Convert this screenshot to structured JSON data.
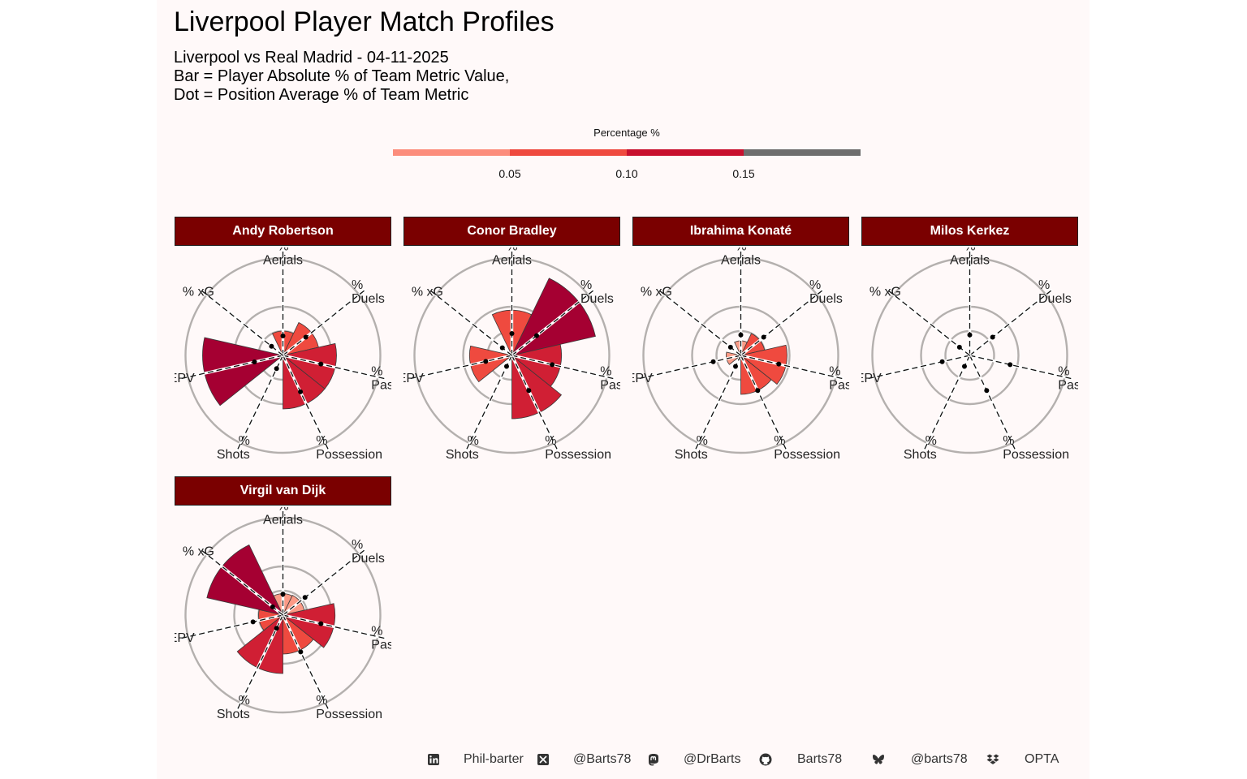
{
  "title": "Liverpool Player Match Profiles",
  "subtitle_lines": [
    "Liverpool vs Real Madrid - 04-11-2025",
    "Bar = Player Absolute % of Team Metric Value,",
    "Dot = Position Average % of Team Metric"
  ],
  "legend": {
    "title": "Percentage %",
    "ticks": [
      "0.05",
      "0.10",
      "0.15"
    ],
    "colors": [
      "#fc8d7c",
      "#ef4a3f",
      "#c8102e",
      "#6e6e6e"
    ]
  },
  "chart_data": {
    "type": "polar-bar",
    "metric_labels": [
      [
        "%",
        "Aerials"
      ],
      [
        "%",
        "Duels"
      ],
      [
        "%",
        "Passes"
      ],
      [
        "%",
        "Possession"
      ],
      [
        "%",
        "Shots"
      ],
      [
        "% EPV"
      ],
      [
        "% xG"
      ]
    ],
    "metrics": [
      "Aerials",
      "Duels",
      "Passes",
      "Possession",
      "Shots",
      "EPV",
      "xG"
    ],
    "rlim": [
      0,
      0.2
    ],
    "gridlines": [
      0.05,
      0.1,
      0.2
    ],
    "fill_scale": {
      "breaks": [
        0.05,
        0.1,
        0.15
      ],
      "colors": [
        "#fb9a86",
        "#ef4a3f",
        "#d01f34",
        "#a50032"
      ]
    },
    "players": [
      {
        "name": "Andy Robertson",
        "values": [
          0.05,
          0.075,
          0.11,
          0.11,
          0.0,
          0.165,
          0.0
        ],
        "avg": [
          0.04,
          0.06,
          0.08,
          0.083,
          0.03,
          0.06,
          0.03
        ]
      },
      {
        "name": "Conor Bradley",
        "values": [
          0.093,
          0.176,
          0.102,
          0.13,
          0.0,
          0.087,
          0.0
        ],
        "avg": [
          0.045,
          0.065,
          0.085,
          0.08,
          0.025,
          0.055,
          0.025
        ]
      },
      {
        "name": "Ibrahima Konaté",
        "values": [
          0.03,
          0.05,
          0.095,
          0.08,
          0.0,
          0.03,
          0.0
        ],
        "avg": [
          0.042,
          0.06,
          0.08,
          0.08,
          0.025,
          0.058,
          0.027
        ]
      },
      {
        "name": "Milos Kerkez",
        "values": [
          0.0,
          0.0,
          0.0,
          0.0,
          0.0,
          0.0,
          0.0
        ],
        "avg": [
          0.042,
          0.06,
          0.085,
          0.08,
          0.025,
          0.058,
          0.027
        ]
      },
      {
        "name": "Virgil van Dijk",
        "values": [
          0.044,
          0.045,
          0.107,
          0.08,
          0.12,
          0.05,
          0.16
        ],
        "avg": [
          0.043,
          0.058,
          0.08,
          0.084,
          0.03,
          0.063,
          0.027
        ]
      }
    ]
  },
  "footer": {
    "items": [
      {
        "icon": "linkedin-icon",
        "text": "Phil-barter"
      },
      {
        "icon": "x-twitter-icon",
        "text": "@Barts78"
      },
      {
        "icon": "mastodon-icon",
        "text": "@DrBarts"
      },
      {
        "icon": "github-icon",
        "text": "Barts78"
      },
      {
        "icon": "bluesky-icon",
        "text": "@barts78"
      },
      {
        "icon": "dropbox-icon",
        "text": "OPTA"
      }
    ]
  }
}
